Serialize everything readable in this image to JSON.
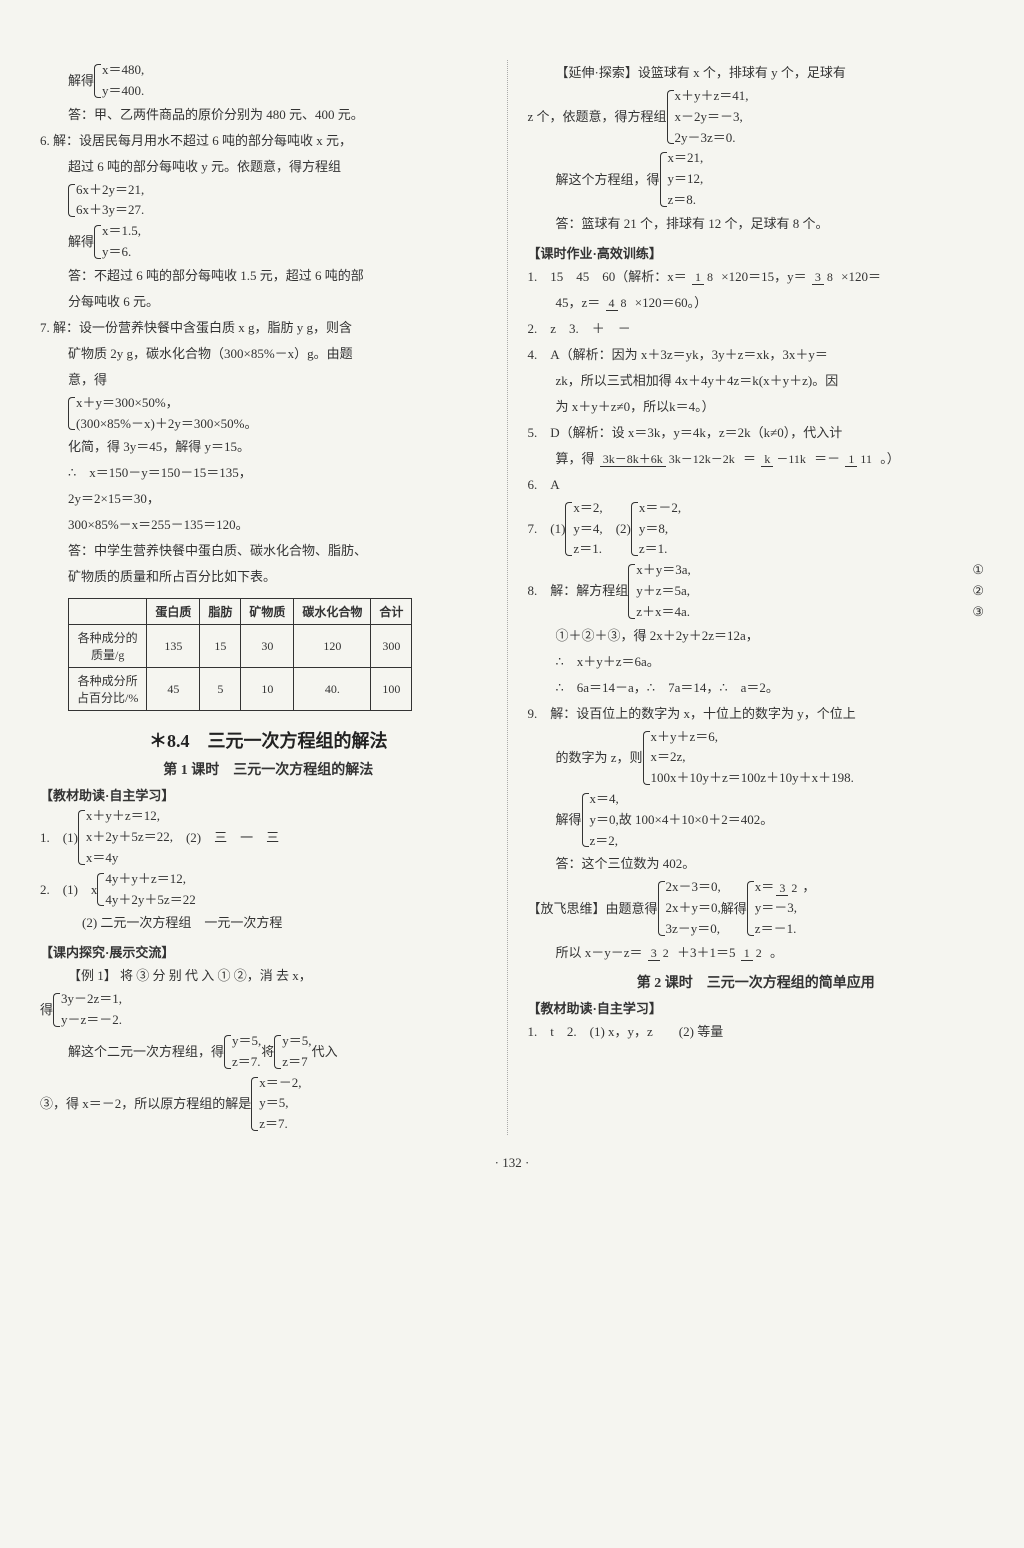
{
  "left": {
    "p1a": "解得",
    "p1b": [
      "x＝480,",
      "y＝400."
    ],
    "p2": "答：甲、乙两件商品的原价分别为 480 元、400 元。",
    "p3": "6. 解：设居民每月用水不超过 6 吨的部分每吨收 x 元，",
    "p4": "超过 6 吨的部分每吨收 y 元。依题意，得方程组",
    "p5": [
      "6x＋2y＝21,",
      "6x＋3y＝27."
    ],
    "p6a": "解得",
    "p6b": [
      "x＝1.5,",
      "y＝6."
    ],
    "p7": "答：不超过 6 吨的部分每吨收 1.5 元，超过 6 吨的部",
    "p8": "分每吨收 6 元。",
    "p9": "7. 解：设一份营养快餐中含蛋白质 x g，脂肪 y g，则含",
    "p10": "矿物质 2y g，碳水化合物（300×85%－x）g。由题",
    "p11": "意，得",
    "p12": [
      "x＋y＝300×50%，",
      "(300×85%－x)＋2y＝300×50%。"
    ],
    "p13": "化简，得 3y＝45，解得 y＝15。",
    "p14": "∴　x＝150－y＝150－15＝135，",
    "p15": "2y＝2×15＝30，",
    "p16": "300×85%－x＝255－135＝120。",
    "p17": "答：中学生营养快餐中蛋白质、碳水化合物、脂肪、",
    "p18": "矿物质的质量和所占百分比如下表。",
    "table": {
      "headers": [
        "",
        "蛋白质",
        "脂肪",
        "矿物质",
        "碳水化合物",
        "合计"
      ],
      "rows": [
        [
          "各种成分的\n质量/g",
          "135",
          "15",
          "30",
          "120",
          "300"
        ],
        [
          "各种成分所\n占百分比/%",
          "45",
          "5",
          "10",
          "40.",
          "100"
        ]
      ]
    },
    "section": "＊8.4　三元一次方程组的解法",
    "sub1": "第 1 课时　三元一次方程组的解法",
    "tag1": "【教材助读·自主学习】",
    "q1a": "1.　(1)",
    "q1b": [
      "x＋y＋z＝12,",
      "x＋2y＋5z＝22,",
      "x＝4y"
    ],
    "q1c": "　(2)　三　一　三",
    "q2a": "2.　(1)　x",
    "q2b": [
      "4y＋y＋z＝12,",
      "4y＋2y＋5z＝22"
    ],
    "q2c": "(2) 二元一次方程组　一元一次方程",
    "tag2": "【课内探究·展示交流】",
    "ex1a": "【例 1】 将 ③ 分 别 代 入 ① ②，消 去 x，",
    "ex1b": "得",
    "ex1c": [
      "3y－2z＝1,",
      "y－z＝－2."
    ],
    "ex1d": "解这个二元一次方程组，得",
    "ex1e": [
      "y＝5,",
      "z＝7."
    ],
    "ex1f": "将",
    "ex1g": [
      "y＝5,",
      "z＝7"
    ],
    "ex1h": "代入",
    "ex1i": "③，得 x＝－2，所以原方程组的解是",
    "ex1j": [
      "x＝－2,",
      "y＝5,",
      "z＝7."
    ]
  },
  "right": {
    "p1": "【延伸·探索】设篮球有 x 个，排球有 y 个，足球有",
    "p2a": "z 个，依题意，得方程组",
    "p2b": [
      "x＋y＋z＝41,",
      "x－2y＝－3,",
      "2y－3z＝0."
    ],
    "p3a": "解这个方程组，得",
    "p3b": [
      "x＝21,",
      "y＝12,",
      "z＝8."
    ],
    "p4": "答：篮球有 21 个，排球有 12 个，足球有 8 个。",
    "tag1": "【课时作业·高效训练】",
    "q1a": "1.　15　45　60（解析：x＝",
    "q1f1": {
      "num": "1",
      "den": "8"
    },
    "q1b": "×120＝15，y＝",
    "q1f2": {
      "num": "3",
      "den": "8"
    },
    "q1c": "×120＝",
    "q1d": "45，z＝",
    "q1f3": {
      "num": "4",
      "den": "8"
    },
    "q1e": "×120＝60。）",
    "q2": "2.　z　3.　＋　－",
    "q4a": "4.　A（解析：因为 x＋3z＝yk，3y＋z＝xk，3x＋y＝",
    "q4b": "zk，所以三式相加得 4x＋4y＋4z＝k(x＋y＋z)。因",
    "q4c": "为 x＋y＋z≠0，所以k＝4。）",
    "q5a": "5.　D（解析：设 x＝3k，y＝4k，z＝2k（k≠0），代入计",
    "q5b": "算，得",
    "q5f1": {
      "num": "3k－8k＋6k",
      "den": "3k－12k－2k"
    },
    "q5c": "＝",
    "q5f2": {
      "num": "k",
      "den": "－11k"
    },
    "q5d": "＝－",
    "q5f3": {
      "num": "1",
      "den": "11"
    },
    "q5e": "。）",
    "q6": "6.　A",
    "q7a": "7.　(1)",
    "q7b": [
      "x＝2,",
      "y＝4,",
      "z＝1."
    ],
    "q7c": "　(2)",
    "q7d": [
      "x＝－2,",
      "y＝8,",
      "z＝1."
    ],
    "q8a": "8.　解：解方程组",
    "q8b": [
      "x＋y＝3a,",
      "y＋z＝5a,",
      "z＋x＝4a."
    ],
    "q8n": [
      "①",
      "②",
      "③"
    ],
    "q8c": "①＋②＋③，得 2x＋2y＋2z＝12a，",
    "q8d": "∴　x＋y＋z＝6a。",
    "q8e": "∴　6a＝14－a，∴　7a＝14，∴　a＝2。",
    "q9a": "9.　解：设百位上的数字为 x，十位上的数字为 y，个位上",
    "q9b": "的数字为 z，则",
    "q9c": [
      "x＋y＋z＝6,",
      "x＝2z,",
      "100x＋10y＋z＝100z＋10y＋x＋198."
    ],
    "q9d": "解得",
    "q9e": [
      "x＝4,",
      "y＝0,",
      "z＝2,"
    ],
    "q9f": "故 100×4＋10×0＋2＝402。",
    "q9g": "答：这个三位数为 402。",
    "fxa": "【放飞思维】由题意得",
    "fxb": [
      "2x－3＝0,",
      "2x＋y＝0,",
      "3z－y＝0,"
    ],
    "fxc": "解得",
    "fxd_1a": "x＝",
    "fxd_1f": {
      "num": "3",
      "den": "2"
    },
    "fxd_1b": "，",
    "fxd_2": "y＝－3,",
    "fxd_3": "z＝－1.",
    "fxe": "所以 x－y－z＝",
    "fxf1": {
      "num": "3",
      "den": "2"
    },
    "fxg": "＋3＋1＝5",
    "fxf2": {
      "num": "1",
      "den": "2"
    },
    "fxh": "。",
    "sub2": "第 2 课时　三元一次方程组的简单应用",
    "tag2": "【教材助读·自主学习】",
    "b1": "1.　t　2.　(1) x，y，z　　(2) 等量"
  },
  "pagenum": "· 132 ·"
}
